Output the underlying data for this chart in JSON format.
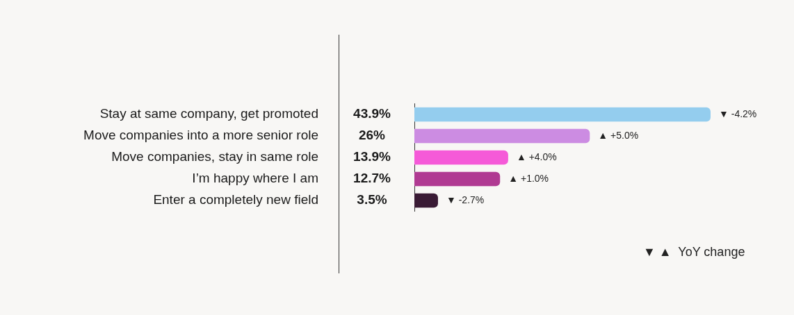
{
  "chart_data": {
    "type": "bar",
    "orientation": "horizontal",
    "categories": [
      "Stay at same company, get promoted",
      "Move companies into a more senior role",
      "Move companies, stay in same role",
      "I’m happy where I am",
      "Enter a completely new field"
    ],
    "values": [
      43.9,
      26,
      13.9,
      12.7,
      3.5
    ],
    "colors": [
      "#94cdee",
      "#cc8ce2",
      "#f55ad8",
      "#b03a92",
      "#3a1b35"
    ],
    "value_labels": [
      "43.9%",
      "26%",
      "13.9%",
      "12.7%",
      "3.5%"
    ],
    "annotations": [
      {
        "text": "▼ -4.2%",
        "x": 43.9,
        "y": "Stay at same company, get promoted"
      },
      {
        "text": "▲ +5.0%",
        "x": 26,
        "y": "Move companies into a more senior role"
      },
      {
        "text": "▲ +4.0%",
        "x": 13.9,
        "y": "Move companies, stay in same role"
      },
      {
        "text": "▲ +1.0%",
        "x": 12.7,
        "y": "I’m happy where I am"
      },
      {
        "text": "▼ -2.7%",
        "x": 3.5,
        "y": "Enter a completely new field"
      },
      "▼ ▲  YoY change"
    ],
    "grid": false,
    "legend": false
  }
}
